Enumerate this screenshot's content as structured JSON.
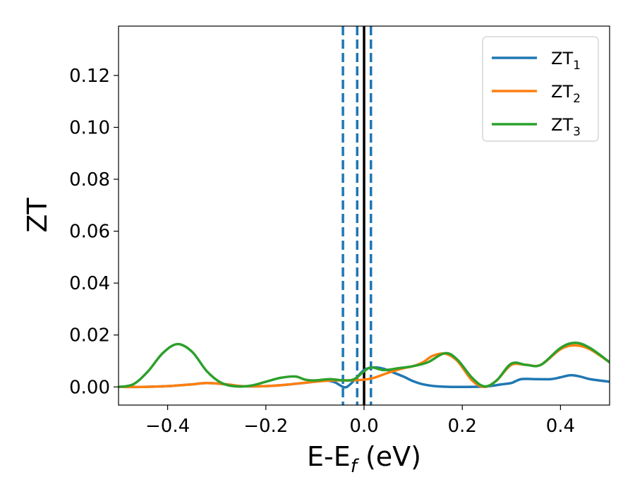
{
  "chart_data": {
    "type": "line",
    "xlabel": "E-E_f (eV)",
    "xlabel_parts": {
      "main": "E-E",
      "sub": "f",
      "suffix": " (eV)"
    },
    "ylabel": "ZT",
    "xlim": [
      -0.5,
      0.5
    ],
    "ylim": [
      -0.007,
      0.139
    ],
    "x_ticks": [
      -0.4,
      -0.2,
      0.0,
      0.2,
      0.4
    ],
    "x_tick_labels": [
      "−0.4",
      "−0.2",
      "0.0",
      "0.2",
      "0.4"
    ],
    "y_ticks": [
      0.0,
      0.02,
      0.04,
      0.06,
      0.08,
      0.1,
      0.12
    ],
    "y_tick_labels": [
      "0.00",
      "0.02",
      "0.04",
      "0.06",
      "0.08",
      "0.10",
      "0.12"
    ],
    "grid": false,
    "legend_position": "top-right",
    "vlines": [
      {
        "x": 0.0,
        "style": "solid",
        "color": "#000000"
      },
      {
        "x": -0.043,
        "style": "dashed",
        "color": "#1f77b4"
      },
      {
        "x": -0.014,
        "style": "dashed",
        "color": "#1f77b4"
      },
      {
        "x": 0.014,
        "style": "dashed",
        "color": "#1f77b4"
      }
    ],
    "series": [
      {
        "name": "ZT_1",
        "label_main": "ZT",
        "label_sub": "1",
        "color": "#1f77b4",
        "x": [
          -0.5,
          -0.45,
          -0.4,
          -0.35,
          -0.32,
          -0.28,
          -0.25,
          -0.2,
          -0.15,
          -0.1,
          -0.08,
          -0.06,
          -0.045,
          -0.035,
          -0.02,
          0.0,
          0.02,
          0.04,
          0.06,
          0.08,
          0.1,
          0.12,
          0.15,
          0.2,
          0.25,
          0.28,
          0.3,
          0.32,
          0.35,
          0.38,
          0.4,
          0.42,
          0.44,
          0.46,
          0.5
        ],
        "y": [
          0.0,
          0.0,
          0.0003,
          0.001,
          0.0015,
          0.001,
          0.0003,
          0.0003,
          0.001,
          0.002,
          0.0025,
          0.0018,
          0.0002,
          0.0,
          0.0025,
          0.0065,
          0.0075,
          0.007,
          0.0055,
          0.004,
          0.0022,
          0.001,
          0.0002,
          0.0,
          0.0002,
          0.001,
          0.0015,
          0.003,
          0.003,
          0.003,
          0.0037,
          0.0045,
          0.004,
          0.003,
          0.002
        ]
      },
      {
        "name": "ZT_2",
        "label_main": "ZT",
        "label_sub": "2",
        "color": "#ff7f0e",
        "x": [
          -0.5,
          -0.45,
          -0.4,
          -0.35,
          -0.32,
          -0.28,
          -0.25,
          -0.2,
          -0.15,
          -0.1,
          -0.06,
          -0.03,
          0.0,
          0.02,
          0.05,
          0.08,
          0.1,
          0.12,
          0.14,
          0.165,
          0.19,
          0.22,
          0.245,
          0.27,
          0.3,
          0.33,
          0.36,
          0.4,
          0.43,
          0.46,
          0.5
        ],
        "y": [
          0.0,
          0.0,
          0.0003,
          0.001,
          0.0015,
          0.001,
          0.0003,
          0.0003,
          0.001,
          0.002,
          0.0025,
          0.0025,
          0.0028,
          0.0035,
          0.0055,
          0.0072,
          0.008,
          0.0095,
          0.012,
          0.0128,
          0.01,
          0.0025,
          0.0,
          0.0025,
          0.0085,
          0.0085,
          0.0085,
          0.0145,
          0.016,
          0.0145,
          0.0095
        ]
      },
      {
        "name": "ZT_3",
        "label_main": "ZT",
        "label_sub": "3",
        "color": "#2ca02c",
        "x": [
          -0.5,
          -0.47,
          -0.44,
          -0.41,
          -0.38,
          -0.35,
          -0.32,
          -0.29,
          -0.26,
          -0.23,
          -0.2,
          -0.17,
          -0.14,
          -0.12,
          -0.1,
          -0.07,
          -0.04,
          -0.02,
          0.0,
          0.015,
          0.04,
          0.07,
          0.1,
          0.13,
          0.165,
          0.19,
          0.22,
          0.245,
          0.27,
          0.3,
          0.33,
          0.36,
          0.4,
          0.43,
          0.46,
          0.5
        ],
        "y": [
          0.0,
          0.001,
          0.006,
          0.013,
          0.0165,
          0.0135,
          0.006,
          0.0015,
          0.0002,
          0.0005,
          0.002,
          0.0035,
          0.004,
          0.0028,
          0.0025,
          0.003,
          0.0025,
          0.003,
          0.006,
          0.0075,
          0.0065,
          0.0072,
          0.008,
          0.0095,
          0.013,
          0.0105,
          0.0035,
          0.0002,
          0.0025,
          0.009,
          0.0085,
          0.0085,
          0.015,
          0.017,
          0.015,
          0.0095
        ]
      }
    ]
  }
}
